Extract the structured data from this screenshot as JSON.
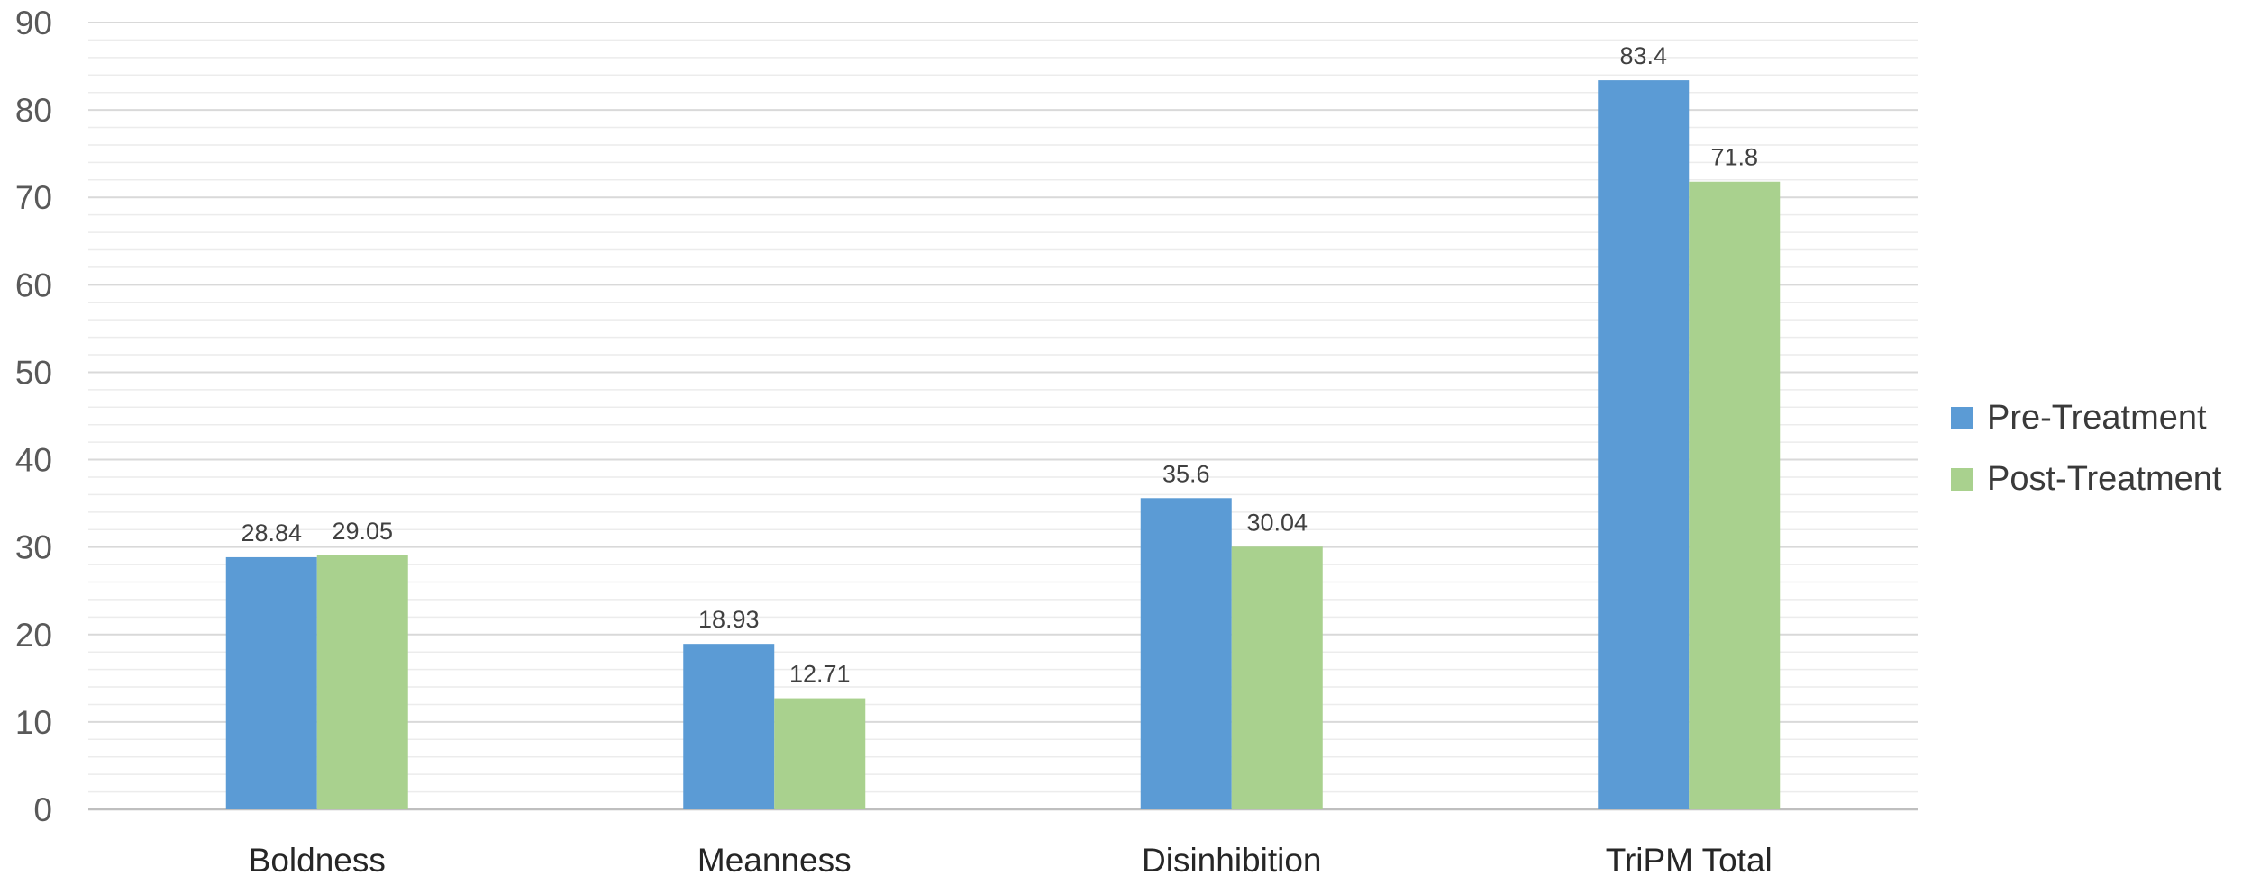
{
  "chart_data": {
    "type": "bar",
    "title": "",
    "xlabel": "",
    "ylabel": "",
    "categories": [
      "Boldness",
      "Meanness",
      "Disinhibition",
      "TriPM Total"
    ],
    "series": [
      {
        "name": "Pre-Treatment",
        "color": "#5B9BD5",
        "values": [
          28.84,
          18.93,
          35.6,
          83.4
        ]
      },
      {
        "name": "Post-Treatment",
        "color": "#A9D18E",
        "values": [
          29.05,
          12.71,
          30.04,
          71.8
        ]
      }
    ],
    "data_labels": [
      [
        "28.84",
        "18.93",
        "35.6",
        "83.4"
      ],
      [
        "29.05",
        "12.71",
        "30.04",
        "71.8"
      ]
    ],
    "ylim": [
      0,
      90
    ],
    "yticks": [
      0,
      10,
      20,
      30,
      40,
      50,
      60,
      70,
      80,
      90
    ],
    "minor_grid_step": 2,
    "grid": true,
    "legend_position": "right"
  }
}
